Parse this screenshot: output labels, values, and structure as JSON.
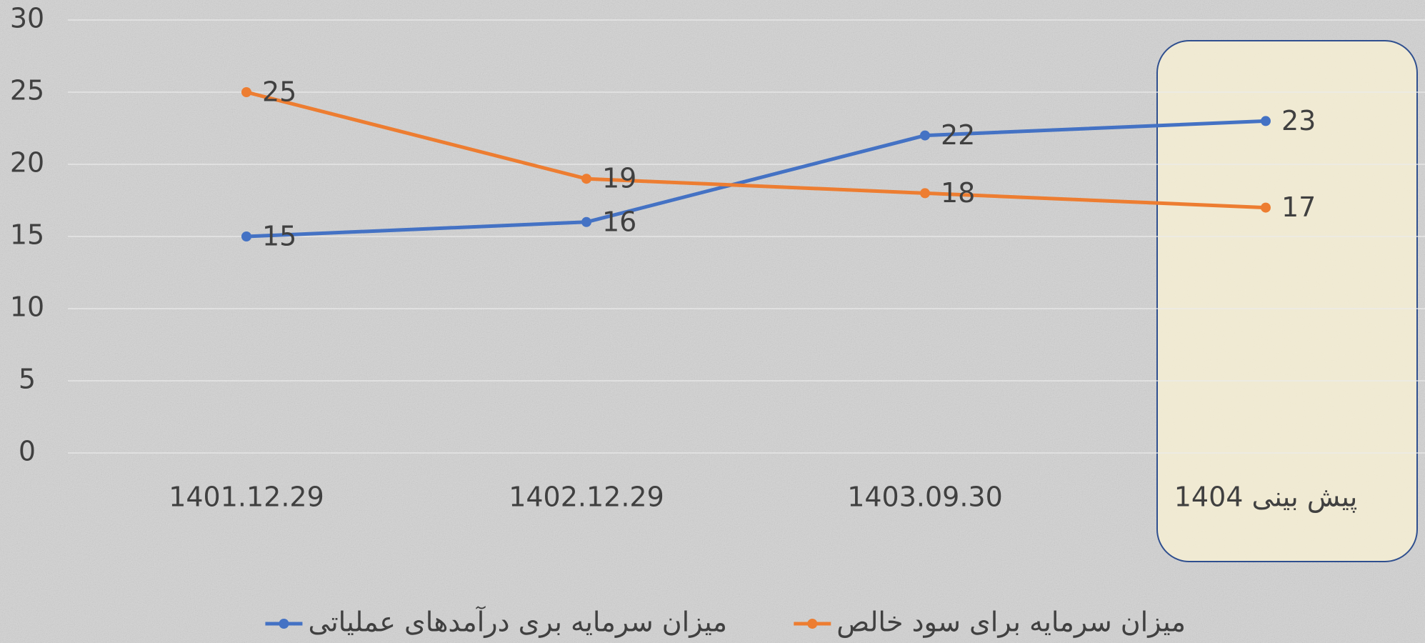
{
  "chart_data": {
    "type": "line",
    "categories": [
      "1401.12.29",
      "1402.12.29",
      "1403.09.30",
      "پیش بینی 1404"
    ],
    "series": [
      {
        "name": "میزان سرمایه بری درآمدهای عملیاتی",
        "color": "#4472c4",
        "values": [
          15,
          16,
          22,
          23
        ]
      },
      {
        "name": "میزان سرمایه برای سود خالص",
        "color": "#ed7d31",
        "values": [
          25,
          19,
          18,
          17
        ]
      }
    ],
    "ylim": [
      0,
      30
    ],
    "yticks": [
      0,
      5,
      10,
      15,
      20,
      25,
      30
    ],
    "grid": true,
    "data_labels": true,
    "legend": "bottom"
  }
}
